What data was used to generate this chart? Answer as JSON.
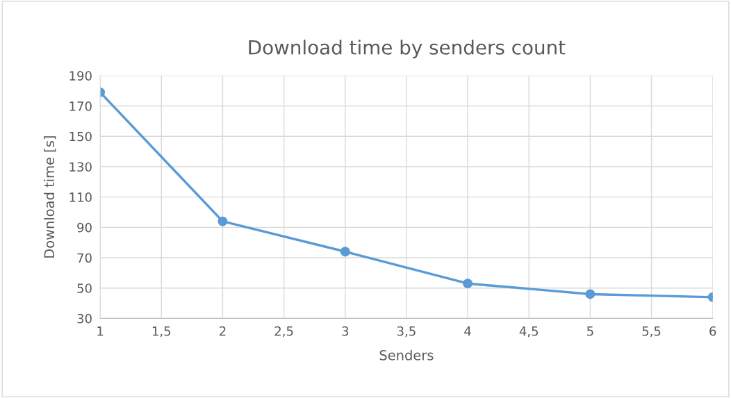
{
  "chart_data": {
    "type": "line",
    "title": "Download time by senders count",
    "xlabel": "Senders",
    "ylabel": "Download time [s]",
    "x": [
      1,
      2,
      3,
      4,
      5,
      6
    ],
    "series": [
      {
        "color": "#5b9bd5",
        "values": [
          179,
          94,
          74,
          53,
          46,
          44
        ]
      }
    ],
    "xlim": [
      1,
      6
    ],
    "xticks": [
      1,
      {
        "value": 1.5,
        "label": "1,5"
      },
      2,
      {
        "value": 2.5,
        "label": "2,5"
      },
      3,
      {
        "value": 3.5,
        "label": "3,5"
      },
      4,
      {
        "value": 4.5,
        "label": "4,5"
      },
      5,
      {
        "value": 5.5,
        "label": "5,5"
      },
      6
    ],
    "ylim": [
      30,
      190
    ],
    "yticks": [
      30,
      50,
      70,
      90,
      110,
      130,
      150,
      170,
      190
    ],
    "grid": true,
    "marker": "circle",
    "line_style": "solid"
  }
}
